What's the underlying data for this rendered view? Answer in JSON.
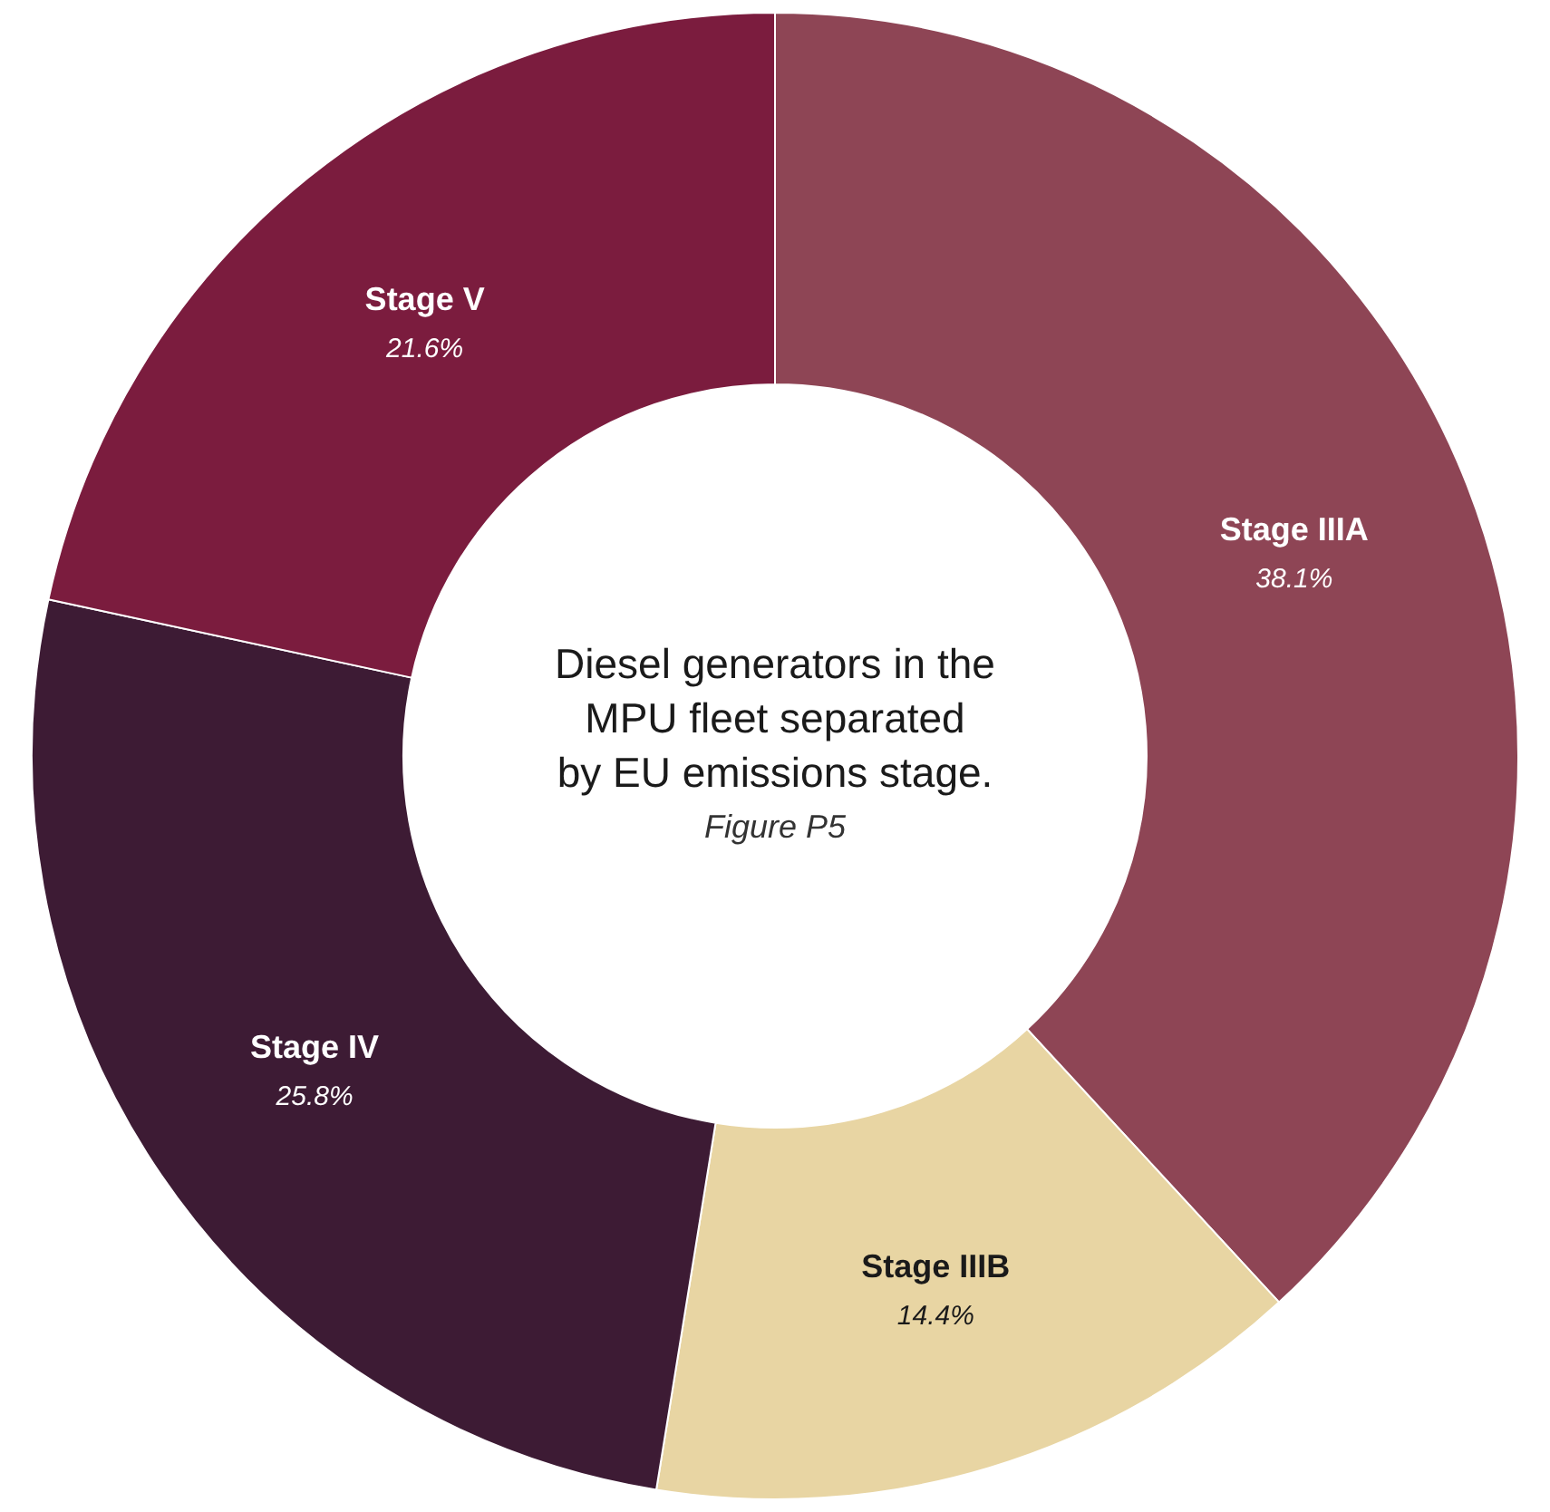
{
  "chart_data": {
    "type": "donut",
    "title": "Diesel generators in the\nMPU fleet separated\nby EU emissions stage.",
    "subtitle": "Figure P5",
    "categories": [
      "Stage IIIA",
      "Stage IIIB",
      "Stage IV",
      "Stage V"
    ],
    "values": [
      38.1,
      14.4,
      25.8,
      21.6
    ],
    "value_labels": [
      "38.1%",
      "14.4%",
      "25.8%",
      "21.6%"
    ],
    "colors": [
      "#8e4555",
      "#e8d5a3",
      "#3d1b34",
      "#7b1c3e"
    ],
    "legend": false
  }
}
